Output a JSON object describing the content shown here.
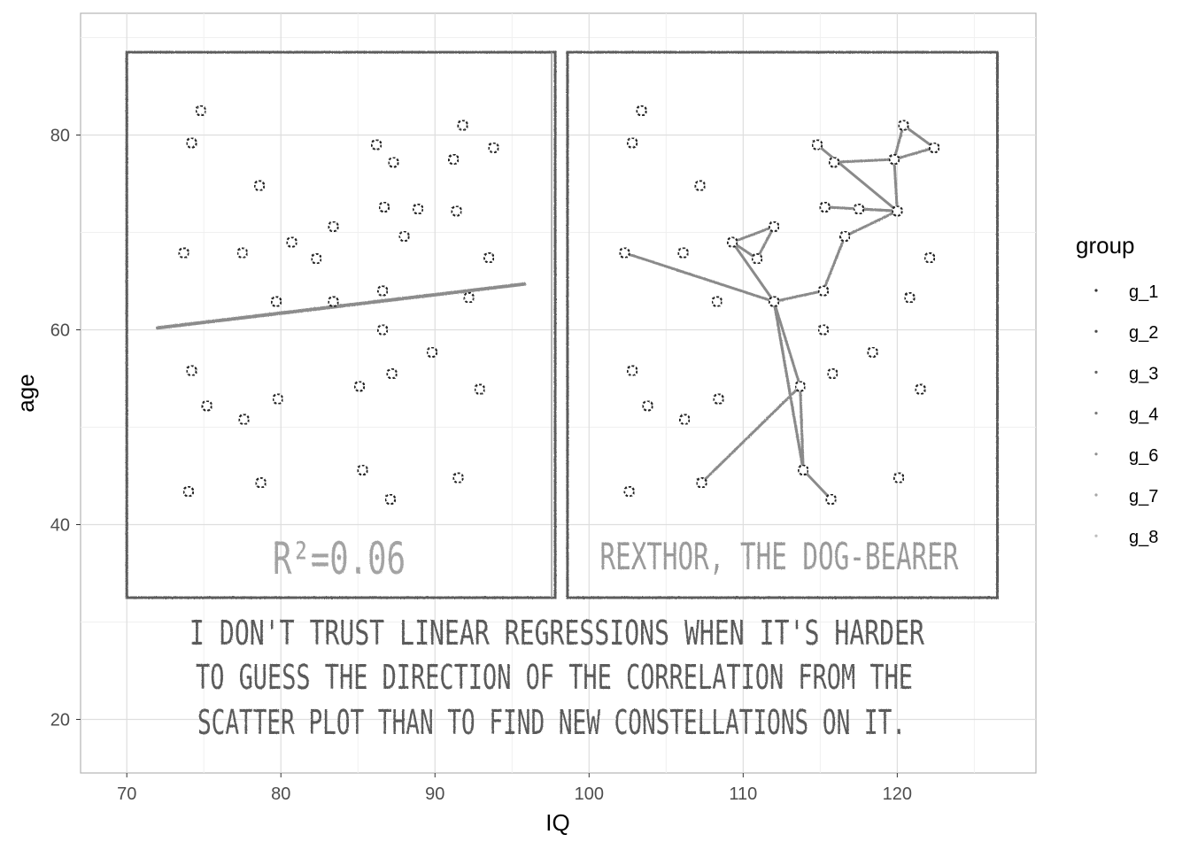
{
  "chart_data": {
    "type": "scatter",
    "xlabel": "IQ",
    "ylabel": "age",
    "xlim": [
      67,
      129
    ],
    "ylim": [
      14.5,
      92.5
    ],
    "xticks": [
      70,
      80,
      90,
      100,
      110,
      120
    ],
    "yticks": [
      20,
      40,
      60,
      80
    ],
    "grid": true,
    "legend": {
      "title": "group",
      "position": "right",
      "entries": [
        "g_1",
        "g_2",
        "g_3",
        "g_4",
        "g_6",
        "g_7",
        "g_8"
      ],
      "colors": [
        "#333333",
        "#4a4a4a",
        "#616161",
        "#787878",
        "#8f8f8f",
        "#a6a6a6",
        "#bdbdbd"
      ]
    },
    "panels": [
      {
        "x0": 70,
        "x1": 97.8,
        "y0": 32.5,
        "y1": 88.5
      },
      {
        "x0": 98.6,
        "x1": 126.5,
        "y0": 32.5,
        "y1": 88.5
      }
    ],
    "points_left": [
      [
        74.8,
        82.5
      ],
      [
        74.2,
        79.2
      ],
      [
        78.6,
        74.8
      ],
      [
        73.7,
        67.9
      ],
      [
        77.5,
        67.9
      ],
      [
        80.7,
        69.0
      ],
      [
        82.3,
        67.3
      ],
      [
        83.4,
        70.6
      ],
      [
        79.7,
        62.9
      ],
      [
        83.4,
        62.9
      ],
      [
        74.2,
        55.8
      ],
      [
        75.2,
        52.2
      ],
      [
        77.6,
        50.8
      ],
      [
        79.8,
        52.9
      ],
      [
        74.0,
        43.4
      ],
      [
        78.7,
        44.3
      ],
      [
        86.2,
        79.0
      ],
      [
        87.3,
        77.2
      ],
      [
        86.7,
        72.6
      ],
      [
        88.9,
        72.4
      ],
      [
        88.0,
        69.6
      ],
      [
        91.2,
        77.5
      ],
      [
        91.8,
        81.0
      ],
      [
        93.8,
        78.7
      ],
      [
        91.4,
        72.2
      ],
      [
        93.5,
        67.4
      ],
      [
        86.6,
        64.0
      ],
      [
        92.2,
        63.3
      ],
      [
        86.6,
        60.0
      ],
      [
        89.8,
        57.7
      ],
      [
        87.2,
        55.5
      ],
      [
        85.1,
        54.2
      ],
      [
        92.9,
        53.9
      ],
      [
        85.3,
        45.6
      ],
      [
        87.1,
        42.6
      ],
      [
        91.5,
        44.8
      ]
    ],
    "regression": {
      "x": [
        72,
        95.8
      ],
      "y": [
        60.2,
        64.7
      ]
    },
    "r2_label": "R²=0.06",
    "constellation_label": "REXTHOR, THE DOG-BEARER",
    "caption": [
      "I DON'T TRUST LINEAR REGRESSIONS WHEN IT'S HARDER",
      "TO GUESS THE DIRECTION OF THE CORRELATION FROM THE",
      "SCATTER PLOT THAN TO FIND NEW CONSTELLATIONS ON IT."
    ],
    "constellation_edges": [
      [
        22,
        23
      ],
      [
        23,
        21
      ],
      [
        21,
        22
      ],
      [
        21,
        17
      ],
      [
        21,
        24
      ],
      [
        24,
        16
      ],
      [
        24,
        18
      ],
      [
        24,
        19
      ],
      [
        24,
        20
      ],
      [
        20,
        26
      ],
      [
        26,
        9
      ],
      [
        9,
        5
      ],
      [
        5,
        6
      ],
      [
        6,
        7
      ],
      [
        7,
        5
      ],
      [
        9,
        3
      ],
      [
        9,
        31
      ],
      [
        9,
        33
      ],
      [
        33,
        31
      ],
      [
        31,
        15
      ],
      [
        33,
        34
      ],
      [
        33,
        9
      ]
    ]
  }
}
